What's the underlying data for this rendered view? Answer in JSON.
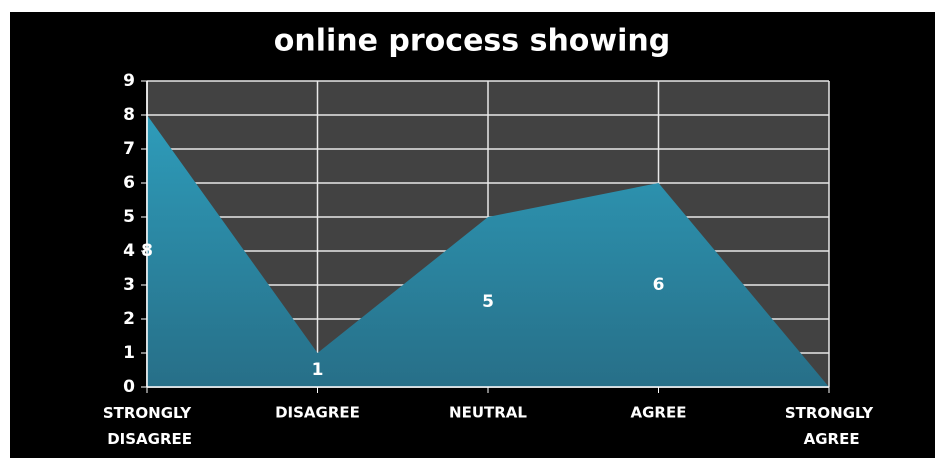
{
  "chart_data": {
    "type": "area",
    "title": "online process showing",
    "categories": [
      "STRONGLY DISAGREE",
      "DISAGREE",
      "NEUTRAL",
      "AGREE",
      "STRONGLY AGREE"
    ],
    "values": [
      8,
      1,
      5,
      6,
      0
    ],
    "color": "#2c8fae",
    "ylim": [
      0,
      9
    ],
    "yticks": [
      0,
      1,
      2,
      3,
      4,
      5,
      6,
      7,
      8,
      9
    ],
    "grid": true
  }
}
